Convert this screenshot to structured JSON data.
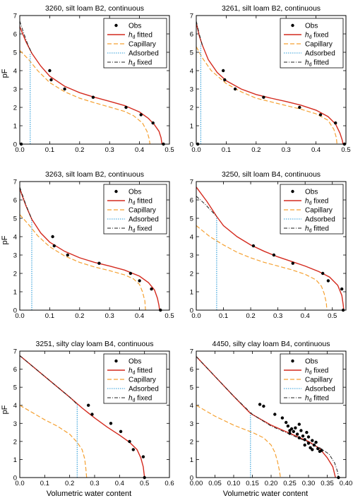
{
  "figure": {
    "ylabel": "pF",
    "xlabel": "Volumetric water content"
  },
  "colors": {
    "obs": "#000000",
    "fitted_line": "#d42a1e",
    "capillary": "#f5a030",
    "adsorbed": "#2a9bd8",
    "alt_line": "#222222"
  },
  "chart_data": [
    {
      "type": "line",
      "title": "3260, silt loam B2, continuous",
      "xlim": [
        0,
        0.5
      ],
      "ylim": [
        0,
        7
      ],
      "xticks": [
        0.0,
        0.1,
        0.2,
        0.3,
        0.4,
        0.5
      ],
      "xtick_labels": [
        "0.0",
        "0.1",
        "0.2",
        "0.3",
        "0.4",
        "0.5"
      ],
      "yticks": [
        0,
        1,
        2,
        3,
        4,
        5,
        6,
        7
      ],
      "show_xlabel": false,
      "show_ylabel": true,
      "legend": [
        "Obs",
        "h_d fitted",
        "Capillary",
        "Adsorbed",
        "h_d fixed"
      ],
      "legend_position": "top-right",
      "obs": [
        [
          0.005,
          0.0
        ],
        [
          0.1,
          4.0
        ],
        [
          0.105,
          3.5
        ],
        [
          0.15,
          3.0
        ],
        [
          0.245,
          2.55
        ],
        [
          0.355,
          2.0
        ],
        [
          0.405,
          1.6
        ],
        [
          0.445,
          1.15
        ],
        [
          0.48,
          0.0
        ]
      ],
      "red": [
        [
          0.0,
          6.4
        ],
        [
          0.02,
          5.6
        ],
        [
          0.04,
          4.95
        ],
        [
          0.07,
          4.25
        ],
        [
          0.1,
          3.7
        ],
        [
          0.15,
          3.15
        ],
        [
          0.2,
          2.8
        ],
        [
          0.25,
          2.55
        ],
        [
          0.3,
          2.33
        ],
        [
          0.35,
          2.1
        ],
        [
          0.4,
          1.75
        ],
        [
          0.43,
          1.4
        ],
        [
          0.45,
          1.05
        ],
        [
          0.465,
          0.7
        ],
        [
          0.472,
          0.35
        ],
        [
          0.475,
          0.0
        ]
      ],
      "black": [
        [
          0.0,
          6.7
        ],
        [
          0.01,
          6.2
        ],
        [
          0.025,
          5.5
        ],
        [
          0.04,
          4.95
        ]
      ],
      "capillary": [
        [
          0.0,
          5.1
        ],
        [
          0.03,
          4.6
        ],
        [
          0.06,
          4.0
        ],
        [
          0.1,
          3.35
        ],
        [
          0.15,
          2.85
        ],
        [
          0.2,
          2.5
        ],
        [
          0.25,
          2.25
        ],
        [
          0.3,
          2.02
        ],
        [
          0.35,
          1.78
        ],
        [
          0.38,
          1.55
        ],
        [
          0.41,
          1.15
        ],
        [
          0.425,
          0.7
        ],
        [
          0.432,
          0.3
        ],
        [
          0.435,
          0.0
        ]
      ],
      "adsorbed": [
        [
          0.035,
          0.0
        ],
        [
          0.035,
          4.95
        ]
      ]
    },
    {
      "type": "line",
      "title": "3261, silt loam B2, continuous",
      "xlim": [
        0,
        0.5
      ],
      "ylim": [
        0,
        7
      ],
      "xticks": [
        0.0,
        0.1,
        0.2,
        0.3,
        0.4,
        0.5
      ],
      "xtick_labels": [
        "0.0",
        "0.1",
        "0.2",
        "0.3",
        "0.4",
        "0.5"
      ],
      "yticks": [
        0,
        1,
        2,
        3,
        4,
        5,
        6,
        7
      ],
      "show_xlabel": false,
      "show_ylabel": false,
      "legend": [
        "Obs",
        "h_d fixed",
        "Capillary",
        "Adsorbed",
        "h_d fitted"
      ],
      "legend_position": "top-right",
      "obs": [
        [
          0.005,
          0.0
        ],
        [
          0.09,
          4.0
        ],
        [
          0.095,
          3.5
        ],
        [
          0.13,
          3.0
        ],
        [
          0.225,
          2.55
        ],
        [
          0.345,
          2.0
        ],
        [
          0.415,
          1.6
        ],
        [
          0.465,
          1.15
        ],
        [
          0.495,
          0.0
        ]
      ],
      "red": [
        [
          0.0,
          6.6
        ],
        [
          0.01,
          5.9
        ],
        [
          0.02,
          5.4
        ],
        [
          0.04,
          4.6
        ],
        [
          0.07,
          3.9
        ],
        [
          0.1,
          3.45
        ],
        [
          0.15,
          3.0
        ],
        [
          0.2,
          2.7
        ],
        [
          0.25,
          2.5
        ],
        [
          0.3,
          2.32
        ],
        [
          0.35,
          2.12
        ],
        [
          0.4,
          1.85
        ],
        [
          0.44,
          1.5
        ],
        [
          0.465,
          1.1
        ],
        [
          0.48,
          0.6
        ],
        [
          0.488,
          0.2
        ],
        [
          0.49,
          0.0
        ]
      ],
      "black": [
        [
          0.0,
          6.7
        ],
        [
          0.01,
          6.0
        ],
        [
          0.02,
          5.4
        ]
      ],
      "capillary": [
        [
          0.0,
          5.3
        ],
        [
          0.02,
          4.7
        ],
        [
          0.05,
          4.0
        ],
        [
          0.1,
          3.3
        ],
        [
          0.15,
          2.85
        ],
        [
          0.2,
          2.5
        ],
        [
          0.25,
          2.3
        ],
        [
          0.3,
          2.1
        ],
        [
          0.35,
          1.9
        ],
        [
          0.4,
          1.65
        ],
        [
          0.44,
          1.3
        ],
        [
          0.46,
          0.8
        ],
        [
          0.468,
          0.35
        ],
        [
          0.47,
          0.0
        ]
      ],
      "adsorbed": [
        [
          0.015,
          0.0
        ],
        [
          0.015,
          5.45
        ]
      ]
    },
    {
      "type": "line",
      "title": "3263, silt loam B2, continuous",
      "xlim": [
        0,
        0.5
      ],
      "ylim": [
        0,
        7
      ],
      "xticks": [
        0.0,
        0.1,
        0.2,
        0.3,
        0.4,
        0.5
      ],
      "xtick_labels": [
        "0.0",
        "0.1",
        "0.2",
        "0.3",
        "0.4",
        "0.5"
      ],
      "yticks": [
        0,
        1,
        2,
        3,
        4,
        5,
        6,
        7
      ],
      "show_xlabel": false,
      "show_ylabel": true,
      "legend": [
        "Obs",
        "h_d fitted",
        "Capillary",
        "Adsorbed",
        "h_d fixed"
      ],
      "legend_position": "top-right",
      "obs": [
        [
          0.11,
          4.0
        ],
        [
          0.115,
          3.5
        ],
        [
          0.16,
          3.0
        ],
        [
          0.265,
          2.55
        ],
        [
          0.37,
          2.0
        ],
        [
          0.4,
          1.6
        ],
        [
          0.44,
          1.15
        ],
        [
          0.47,
          0.0
        ]
      ],
      "red": [
        [
          0.0,
          6.6
        ],
        [
          0.02,
          5.7
        ],
        [
          0.04,
          4.95
        ],
        [
          0.07,
          4.2
        ],
        [
          0.1,
          3.7
        ],
        [
          0.15,
          3.2
        ],
        [
          0.2,
          2.85
        ],
        [
          0.25,
          2.6
        ],
        [
          0.3,
          2.4
        ],
        [
          0.35,
          2.18
        ],
        [
          0.4,
          1.85
        ],
        [
          0.43,
          1.5
        ],
        [
          0.45,
          1.1
        ],
        [
          0.46,
          0.65
        ],
        [
          0.465,
          0.25
        ],
        [
          0.467,
          0.0
        ]
      ],
      "black": [
        [
          0.0,
          6.7
        ],
        [
          0.02,
          5.75
        ],
        [
          0.04,
          4.95
        ]
      ],
      "capillary": [
        [
          0.0,
          5.2
        ],
        [
          0.03,
          4.65
        ],
        [
          0.06,
          4.05
        ],
        [
          0.1,
          3.45
        ],
        [
          0.15,
          2.95
        ],
        [
          0.2,
          2.6
        ],
        [
          0.25,
          2.35
        ],
        [
          0.3,
          2.15
        ],
        [
          0.35,
          1.92
        ],
        [
          0.38,
          1.7
        ],
        [
          0.4,
          1.4
        ],
        [
          0.41,
          1.0
        ],
        [
          0.418,
          0.5
        ],
        [
          0.42,
          0.0
        ]
      ],
      "adsorbed": [
        [
          0.04,
          0.0
        ],
        [
          0.04,
          4.95
        ]
      ]
    },
    {
      "type": "line",
      "title": "3250, silt loam B4, continuous",
      "xlim": [
        0,
        0.55
      ],
      "ylim": [
        0,
        7
      ],
      "xticks": [
        0.0,
        0.1,
        0.2,
        0.3,
        0.4,
        0.5
      ],
      "xtick_labels": [
        "0.0",
        "0.1",
        "0.2",
        "0.3",
        "0.4",
        "0.5"
      ],
      "yticks": [
        0,
        1,
        2,
        3,
        4,
        5,
        6,
        7
      ],
      "show_xlabel": false,
      "show_ylabel": false,
      "legend": [
        "Obs",
        "h_d fixed",
        "Capillary",
        "Adsorbed",
        "h_d fitted"
      ],
      "legend_position": "top-right",
      "obs": [
        [
          0.21,
          3.5
        ],
        [
          0.285,
          3.0
        ],
        [
          0.355,
          2.55
        ],
        [
          0.465,
          2.0
        ],
        [
          0.485,
          1.6
        ],
        [
          0.535,
          1.15
        ],
        [
          0.54,
          0.0
        ]
      ],
      "red": [
        [
          0.0,
          6.7
        ],
        [
          0.04,
          5.9
        ],
        [
          0.075,
          5.1
        ],
        [
          0.1,
          4.6
        ],
        [
          0.15,
          4.0
        ],
        [
          0.2,
          3.55
        ],
        [
          0.25,
          3.2
        ],
        [
          0.3,
          2.9
        ],
        [
          0.35,
          2.65
        ],
        [
          0.4,
          2.4
        ],
        [
          0.45,
          2.1
        ],
        [
          0.49,
          1.8
        ],
        [
          0.52,
          1.35
        ],
        [
          0.535,
          0.8
        ],
        [
          0.54,
          0.3
        ],
        [
          0.542,
          0.0
        ]
      ],
      "black": [
        [
          0.0,
          6.2
        ],
        [
          0.03,
          5.8
        ],
        [
          0.075,
          5.1
        ]
      ],
      "capillary": [
        [
          0.0,
          4.6
        ],
        [
          0.05,
          4.0
        ],
        [
          0.1,
          3.55
        ],
        [
          0.15,
          3.15
        ],
        [
          0.2,
          2.85
        ],
        [
          0.25,
          2.6
        ],
        [
          0.3,
          2.4
        ],
        [
          0.35,
          2.2
        ],
        [
          0.4,
          1.95
        ],
        [
          0.44,
          1.65
        ],
        [
          0.46,
          1.3
        ],
        [
          0.47,
          0.9
        ],
        [
          0.478,
          0.4
        ],
        [
          0.48,
          0.0
        ]
      ],
      "adsorbed": [
        [
          0.075,
          0.0
        ],
        [
          0.075,
          5.1
        ]
      ]
    },
    {
      "type": "line",
      "title": "3251, silty clay loam B4, continuous",
      "xlim": [
        0,
        0.6
      ],
      "ylim": [
        0,
        7
      ],
      "xticks": [
        0.0,
        0.1,
        0.2,
        0.3,
        0.4,
        0.5,
        0.6
      ],
      "xtick_labels": [
        "0.0",
        "0.1",
        "0.2",
        "0.3",
        "0.4",
        "0.5",
        "0.6"
      ],
      "yticks": [
        0,
        1,
        2,
        3,
        4,
        5,
        6,
        7
      ],
      "show_xlabel": true,
      "show_ylabel": true,
      "legend": [
        "Obs",
        "h_d fitted",
        "Capillary",
        "Adsorbed",
        "h_d fixed"
      ],
      "legend_position": "top-right",
      "obs": [
        [
          0.275,
          4.0
        ],
        [
          0.29,
          3.5
        ],
        [
          0.365,
          3.0
        ],
        [
          0.405,
          2.55
        ],
        [
          0.44,
          2.0
        ],
        [
          0.455,
          1.55
        ],
        [
          0.495,
          1.15
        ],
        [
          0.5,
          0.0
        ]
      ],
      "red": [
        [
          0.0,
          6.75
        ],
        [
          0.1,
          5.6
        ],
        [
          0.2,
          4.45
        ],
        [
          0.25,
          3.85
        ],
        [
          0.3,
          3.3
        ],
        [
          0.35,
          2.8
        ],
        [
          0.4,
          2.35
        ],
        [
          0.44,
          1.95
        ],
        [
          0.47,
          1.55
        ],
        [
          0.485,
          1.1
        ],
        [
          0.495,
          0.6
        ],
        [
          0.5,
          0.0
        ]
      ],
      "black": [
        [
          0.0,
          6.75
        ],
        [
          0.1,
          5.6
        ],
        [
          0.2,
          4.45
        ],
        [
          0.23,
          4.05
        ]
      ],
      "capillary": [
        [
          0.0,
          4.0
        ],
        [
          0.05,
          3.6
        ],
        [
          0.1,
          3.2
        ],
        [
          0.15,
          2.85
        ],
        [
          0.2,
          2.4
        ],
        [
          0.23,
          1.95
        ],
        [
          0.25,
          1.55
        ],
        [
          0.26,
          1.05
        ],
        [
          0.265,
          0.5
        ],
        [
          0.268,
          0.0
        ]
      ],
      "adsorbed": [
        [
          0.23,
          0.0
        ],
        [
          0.23,
          4.05
        ]
      ]
    },
    {
      "type": "line",
      "title": "4450, silty clay loam B4, continuous",
      "xlim": [
        0,
        0.4
      ],
      "ylim": [
        0,
        7
      ],
      "xticks": [
        0.0,
        0.05,
        0.1,
        0.15,
        0.2,
        0.25,
        0.3,
        0.35,
        0.4
      ],
      "xtick_labels": [
        "0.00",
        "0.05",
        "0.10",
        "0.15",
        "0.20",
        "0.25",
        "0.30",
        "0.35",
        "0.40"
      ],
      "yticks": [
        0,
        1,
        2,
        3,
        4,
        5,
        6,
        7
      ],
      "show_xlabel": true,
      "show_ylabel": false,
      "legend": [
        "Obs",
        "h_d fixed",
        "Capillary",
        "Adsorbed",
        "h_d fitted"
      ],
      "legend_position": "top-right",
      "obs": [
        [
          0.17,
          4.05
        ],
        [
          0.18,
          3.95
        ],
        [
          0.21,
          3.5
        ],
        [
          0.23,
          3.3
        ],
        [
          0.24,
          3.05
        ],
        [
          0.245,
          2.85
        ],
        [
          0.25,
          2.6
        ],
        [
          0.25,
          2.45
        ],
        [
          0.255,
          2.7
        ],
        [
          0.26,
          2.55
        ],
        [
          0.265,
          2.75
        ],
        [
          0.27,
          2.4
        ],
        [
          0.275,
          2.95
        ],
        [
          0.275,
          2.2
        ],
        [
          0.28,
          2.6
        ],
        [
          0.285,
          2.3
        ],
        [
          0.29,
          2.1
        ],
        [
          0.29,
          1.8
        ],
        [
          0.295,
          2.5
        ],
        [
          0.3,
          2.25
        ],
        [
          0.3,
          1.9
        ],
        [
          0.305,
          1.65
        ],
        [
          0.31,
          2.05
        ],
        [
          0.31,
          1.55
        ],
        [
          0.315,
          1.8
        ],
        [
          0.32,
          1.95
        ],
        [
          0.325,
          1.6
        ],
        [
          0.33,
          1.45
        ],
        [
          0.335,
          1.5
        ],
        [
          0.38,
          0.0
        ]
      ],
      "red": [
        [
          0.0,
          6.7
        ],
        [
          0.05,
          5.6
        ],
        [
          0.1,
          4.5
        ],
        [
          0.145,
          3.55
        ],
        [
          0.2,
          2.9
        ],
        [
          0.25,
          2.45
        ],
        [
          0.3,
          2.0
        ],
        [
          0.33,
          1.6
        ],
        [
          0.35,
          1.1
        ],
        [
          0.365,
          0.6
        ],
        [
          0.372,
          0.0
        ]
      ],
      "black": [
        [
          0.0,
          6.7
        ],
        [
          0.05,
          5.6
        ],
        [
          0.1,
          4.5
        ],
        [
          0.15,
          3.5
        ],
        [
          0.2,
          2.85
        ],
        [
          0.25,
          2.4
        ],
        [
          0.3,
          1.95
        ],
        [
          0.33,
          1.65
        ],
        [
          0.355,
          1.3
        ],
        [
          0.37,
          0.8
        ],
        [
          0.378,
          0.3
        ],
        [
          0.38,
          0.0
        ]
      ],
      "capillary": [
        [
          0.0,
          4.0
        ],
        [
          0.05,
          3.4
        ],
        [
          0.1,
          2.9
        ],
        [
          0.15,
          2.5
        ],
        [
          0.18,
          2.2
        ],
        [
          0.2,
          1.8
        ],
        [
          0.21,
          1.4
        ],
        [
          0.217,
          0.9
        ],
        [
          0.222,
          0.4
        ],
        [
          0.225,
          0.0
        ]
      ],
      "adsorbed": [
        [
          0.145,
          0.0
        ],
        [
          0.145,
          3.55
        ]
      ]
    }
  ]
}
